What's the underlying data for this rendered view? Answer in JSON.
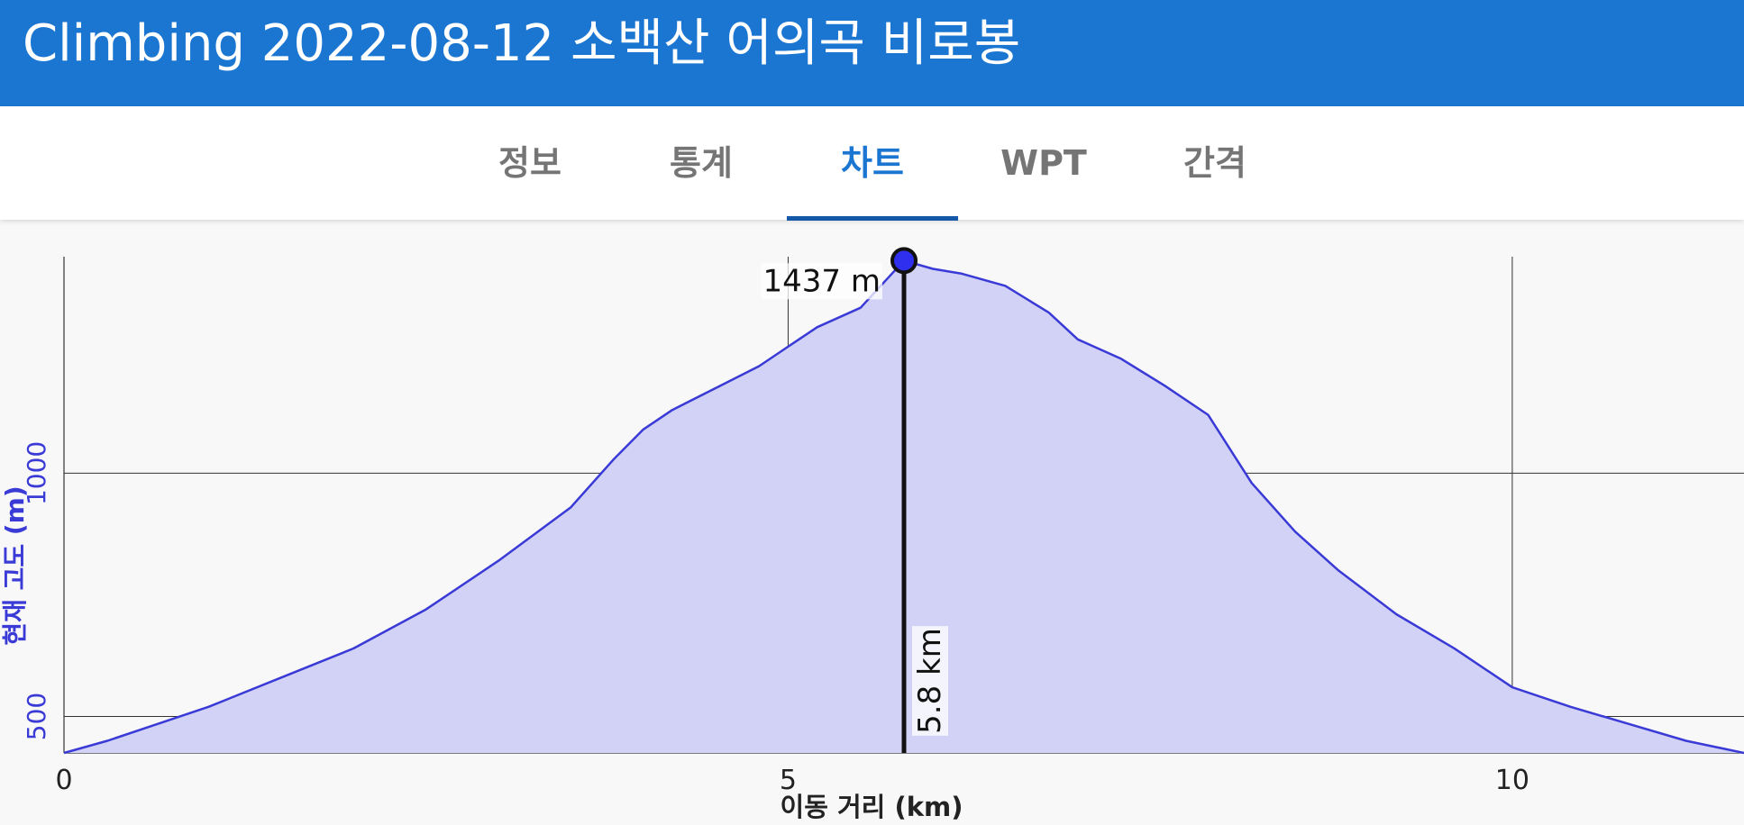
{
  "app_bar": {
    "title": "Climbing 2022-08-12 소백산 어의곡 비로봉"
  },
  "tabs": [
    {
      "label": "정보",
      "active": false
    },
    {
      "label": "통계",
      "active": false
    },
    {
      "label": "차트",
      "active": true
    },
    {
      "label": "WPT",
      "active": false
    },
    {
      "label": "간격",
      "active": false
    }
  ],
  "colors": {
    "app_bar": "#1b76d2",
    "tab_active": "#1b76d2",
    "tab_inactive": "#757575",
    "series_line": "#3a3ad6",
    "series_fill": "#d2d2f6",
    "marker": "#2f2ff0",
    "y_axis_text": "#3a3ad6"
  },
  "chart_data": {
    "type": "area",
    "xlabel": "이동 거리 (km)",
    "ylabel": "현재 고도 (m)",
    "xlim": [
      0,
      11.6
    ],
    "ylim": [
      425,
      1445
    ],
    "x_ticks": [
      "0",
      "5",
      "10"
    ],
    "y_ticks": [
      "500",
      "1000"
    ],
    "grid": true,
    "series": [
      {
        "x": [
          0,
          0.3,
          0.6,
          1.0,
          1.5,
          2.0,
          2.5,
          3.0,
          3.5,
          3.8,
          4.0,
          4.2,
          4.5,
          4.8,
          5.0,
          5.2,
          5.5,
          5.8,
          6.0,
          6.2,
          6.5,
          6.8,
          7.0,
          7.3,
          7.6,
          7.9,
          8.2,
          8.5,
          8.8,
          9.2,
          9.6,
          10.0,
          10.4,
          10.8,
          11.2,
          11.6
        ],
        "y": [
          425,
          450,
          480,
          520,
          580,
          640,
          720,
          820,
          930,
          1030,
          1090,
          1130,
          1175,
          1220,
          1260,
          1300,
          1340,
          1437,
          1420,
          1410,
          1385,
          1330,
          1275,
          1235,
          1180,
          1120,
          980,
          880,
          800,
          710,
          640,
          560,
          520,
          485,
          450,
          425
        ]
      }
    ],
    "cursor": {
      "x": 5.8,
      "y": 1437,
      "x_label": "5.8 km",
      "y_label": "1437 m"
    }
  }
}
